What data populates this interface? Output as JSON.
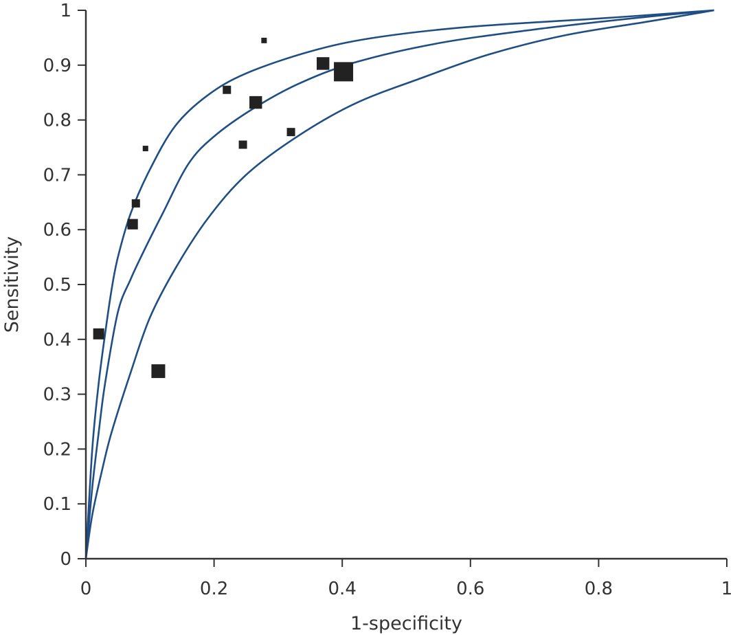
{
  "chart_data": {
    "type": "scatter",
    "xlabel": "1-specificity",
    "ylabel": "Sensitivity",
    "xlim": [
      0,
      1
    ],
    "ylim": [
      0,
      1
    ],
    "x_ticks": [
      "0",
      "0.2",
      "0.4",
      "0.6",
      "0.8",
      "1"
    ],
    "y_ticks": [
      "0",
      "0.1",
      "0.2",
      "0.3",
      "0.4",
      "0.5",
      "0.6",
      "0.7",
      "0.8",
      "0.9",
      "1"
    ],
    "grid": false,
    "legend": "none",
    "colors": {
      "points": "#222222",
      "curves": "#1f4e85",
      "axes": "#333333"
    },
    "studies": [
      {
        "x": 0.02,
        "y": 0.41,
        "weight": 2.0
      },
      {
        "x": 0.073,
        "y": 0.61,
        "weight": 1.9
      },
      {
        "x": 0.078,
        "y": 0.648,
        "weight": 1.5
      },
      {
        "x": 0.093,
        "y": 0.748,
        "weight": 1.0
      },
      {
        "x": 0.113,
        "y": 0.342,
        "weight": 2.5
      },
      {
        "x": 0.22,
        "y": 0.855,
        "weight": 1.5
      },
      {
        "x": 0.245,
        "y": 0.755,
        "weight": 1.5
      },
      {
        "x": 0.265,
        "y": 0.832,
        "weight": 2.3
      },
      {
        "x": 0.278,
        "y": 0.945,
        "weight": 1.0
      },
      {
        "x": 0.32,
        "y": 0.778,
        "weight": 1.5
      },
      {
        "x": 0.37,
        "y": 0.903,
        "weight": 2.3
      },
      {
        "x": 0.402,
        "y": 0.888,
        "weight": 3.5
      }
    ],
    "curves": [
      {
        "x": [
          0,
          0.01,
          0.02,
          0.03,
          0.04,
          0.05,
          0.07,
          0.1,
          0.14,
          0.19,
          0.25,
          0.35,
          0.45,
          0.6,
          0.8,
          0.98
        ],
        "y": [
          0,
          0.2,
          0.32,
          0.41,
          0.49,
          0.55,
          0.63,
          0.71,
          0.79,
          0.845,
          0.885,
          0.925,
          0.95,
          0.97,
          0.985,
          1.0
        ]
      },
      {
        "x": [
          0,
          0.01,
          0.02,
          0.03,
          0.05,
          0.07,
          0.09,
          0.12,
          0.16,
          0.2,
          0.26,
          0.33,
          0.42,
          0.55,
          0.7,
          0.85,
          0.98
        ],
        "y": [
          0,
          0.13,
          0.23,
          0.32,
          0.45,
          0.51,
          0.56,
          0.63,
          0.72,
          0.77,
          0.82,
          0.865,
          0.905,
          0.94,
          0.965,
          0.985,
          1.0
        ]
      },
      {
        "x": [
          0,
          0.01,
          0.025,
          0.04,
          0.07,
          0.1,
          0.14,
          0.19,
          0.25,
          0.33,
          0.42,
          0.52,
          0.63,
          0.75,
          0.88,
          0.98
        ],
        "y": [
          0,
          0.08,
          0.16,
          0.23,
          0.34,
          0.44,
          0.53,
          0.62,
          0.7,
          0.77,
          0.83,
          0.875,
          0.92,
          0.955,
          0.98,
          1.0
        ]
      }
    ]
  }
}
